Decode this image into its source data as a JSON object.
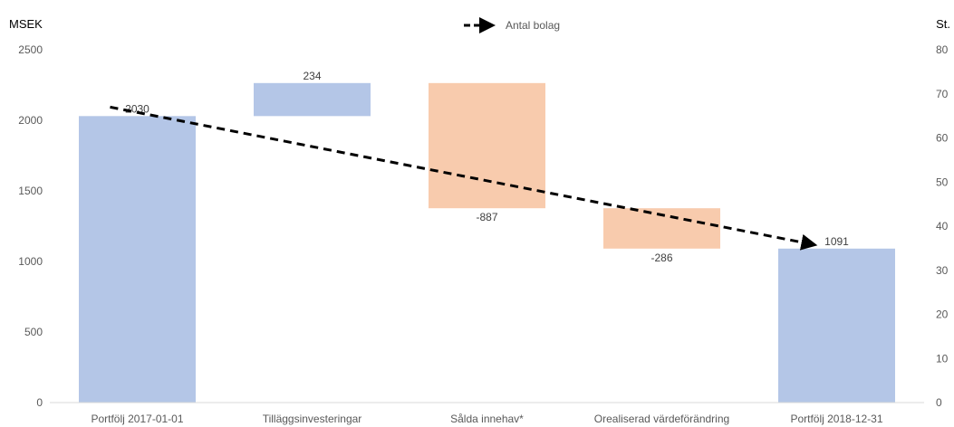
{
  "chart_data": {
    "type": "bar",
    "subtype": "waterfall",
    "y_axis_left": {
      "label": "MSEK",
      "ylim": [
        0,
        2500
      ],
      "ticks": [
        0,
        500,
        1000,
        1500,
        2000,
        2500
      ]
    },
    "y_axis_right": {
      "label": "St.",
      "ylim": [
        0,
        80
      ],
      "ticks": [
        0,
        10,
        20,
        30,
        40,
        50,
        60,
        70,
        80
      ]
    },
    "categories": [
      "Portfölj 2017-01-01",
      "Tilläggsinvesteringar",
      "Sålda innehav*",
      "Orealiserad värdeförändring",
      "Portfölj 2018-12-31"
    ],
    "bars": [
      {
        "category": "Portfölj 2017-01-01",
        "kind": "total",
        "start": 0,
        "end": 2030,
        "label": "2030"
      },
      {
        "category": "Tilläggsinvesteringar",
        "kind": "increase",
        "start": 2030,
        "end": 2264,
        "label": "234"
      },
      {
        "category": "Sålda innehav*",
        "kind": "decrease",
        "start": 2264,
        "end": 1377,
        "label": "-887"
      },
      {
        "category": "Orealiserad värdeförändring",
        "kind": "decrease",
        "start": 1377,
        "end": 1091,
        "label": "-286"
      },
      {
        "category": "Portfölj 2018-12-31",
        "kind": "total",
        "start": 0,
        "end": 1091,
        "label": "1091"
      }
    ],
    "line_series": {
      "name": "Antal bolag",
      "axis": "right",
      "style": "dashed-arrow",
      "start": 67,
      "end": 36
    },
    "legend": {
      "position": "top-center"
    },
    "grid": false,
    "colors": {
      "total_increase": "#b4c6e7",
      "decrease": "#f8cbad",
      "line": "#000000",
      "axis": "#d9d9d9"
    }
  }
}
